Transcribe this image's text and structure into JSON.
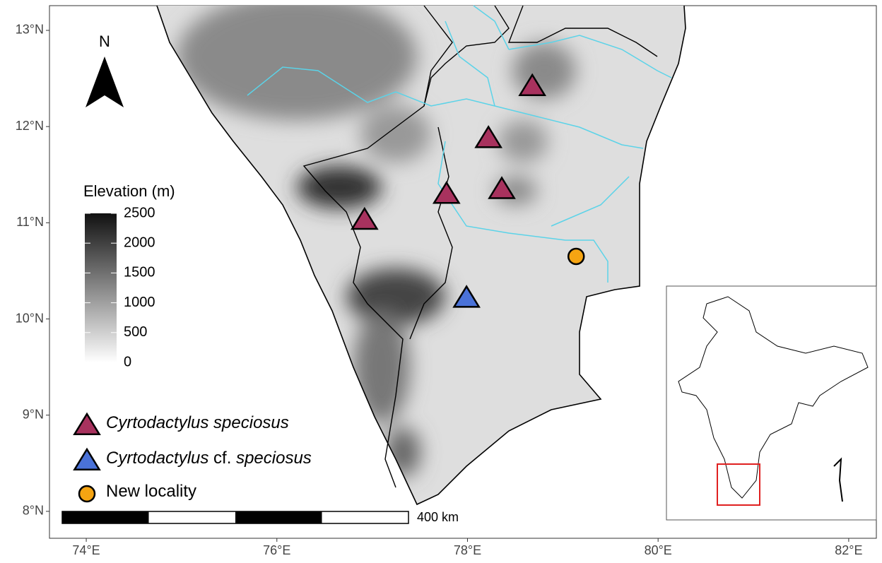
{
  "chart_data": {
    "type": "map",
    "xlim": [
      73.614,
      82.29
    ],
    "ylim": [
      7.72,
      13.257
    ],
    "xticks": [
      {
        "value": 74,
        "label": "74°E"
      },
      {
        "value": 76,
        "label": "76°E"
      },
      {
        "value": 78,
        "label": "78°E"
      },
      {
        "value": 80,
        "label": "80°E"
      },
      {
        "value": 82,
        "label": "82°E"
      }
    ],
    "yticks": [
      {
        "value": 8,
        "label": "8°N"
      },
      {
        "value": 9,
        "label": "9°N"
      },
      {
        "value": 10,
        "label": "10°N"
      },
      {
        "value": 11,
        "label": "11°N"
      },
      {
        "value": 12,
        "label": "12°N"
      },
      {
        "value": 13,
        "label": "13°N"
      }
    ],
    "colorbar": {
      "title": "Elevation (m)",
      "lim": [
        0,
        2500
      ],
      "ticks": [
        0,
        500,
        1000,
        1500,
        2000,
        2500
      ]
    },
    "north_label": "N",
    "scale_bar_label": "400 km",
    "series": [
      {
        "name_parts": [
          {
            "text": "Cyrtodactylus speciosus",
            "italic": true
          }
        ],
        "marker": "triangle",
        "color": "#a8325e",
        "x": [
          78.68,
          78.22,
          77.78,
          78.36,
          76.92
        ],
        "y": [
          12.42,
          11.88,
          11.3,
          11.35,
          11.03
        ]
      },
      {
        "name_parts": [
          {
            "text": "Cyrtodactylus",
            "italic": true
          },
          {
            "text": " cf. ",
            "italic": false
          },
          {
            "text": "speciosus",
            "italic": true
          }
        ],
        "marker": "triangle",
        "color": "#4a72d8",
        "x": [
          77.99
        ],
        "y": [
          10.22
        ]
      },
      {
        "name_parts": [
          {
            "text": "New locality",
            "italic": false
          }
        ],
        "marker": "circle",
        "color": "#f5a412",
        "x": [
          79.14
        ],
        "y": [
          10.65
        ]
      }
    ]
  }
}
